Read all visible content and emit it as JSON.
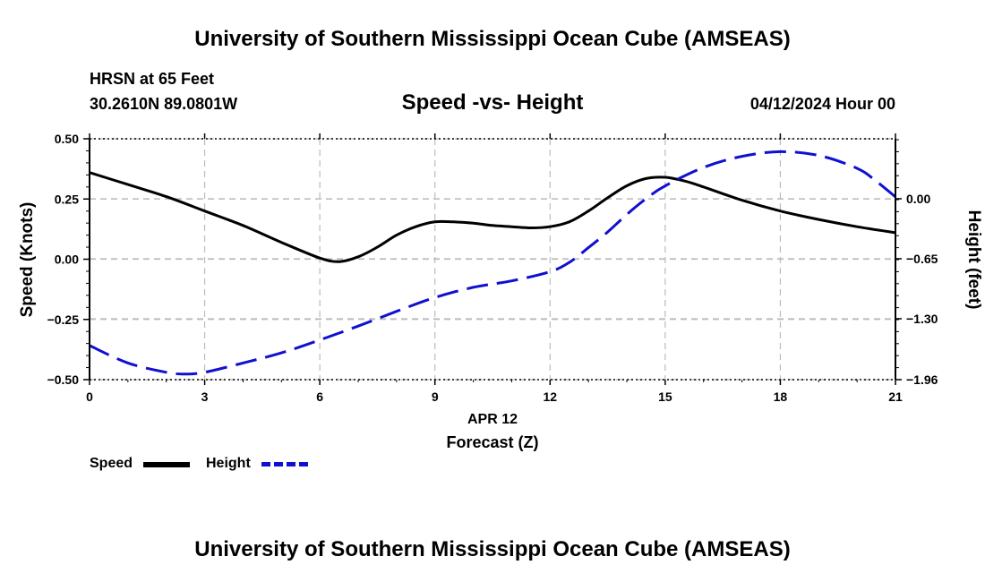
{
  "header": {
    "title": "University of Southern Mississippi Ocean Cube (AMSEAS)",
    "station": "HRSN at 65 Feet",
    "coords": "30.2610N  89.0801W",
    "chart_title": "Speed -vs- Height",
    "datetime": "04/12/2024 Hour 00"
  },
  "footer": {
    "title": "University of Southern Mississippi Ocean Cube (AMSEAS)"
  },
  "legend": {
    "speed_label": "Speed",
    "height_label": "Height"
  },
  "colors": {
    "speed": "#000000",
    "height": "#1010d0",
    "grid": "#bbbbbb"
  },
  "chart_data": {
    "type": "line",
    "title": "Speed -vs- Height",
    "xlabel": "Forecast (Z)",
    "xlabel_date": "APR 12",
    "ylabel": "Speed (Knots)",
    "y2label": "Height (feet)",
    "xlim": [
      0,
      21
    ],
    "ylim": [
      -0.5,
      0.5
    ],
    "y2lim": [
      -1.96,
      0.65
    ],
    "x_ticks": [
      0,
      3,
      6,
      9,
      12,
      15,
      18,
      21
    ],
    "x_tick_labels": [
      "0",
      "3",
      "6",
      "9",
      "12",
      "15",
      "18",
      "21"
    ],
    "y_ticks": [
      -0.5,
      -0.25,
      0,
      0.25,
      0.5
    ],
    "y_tick_labels": [
      "−0.50",
      "−0.25",
      "0.00",
      "0.25",
      "0.50"
    ],
    "y2_ticks": [
      -1.96,
      -1.3,
      -0.65,
      0
    ],
    "y2_tick_labels": [
      "−1.96",
      "−1.30",
      "−0.65",
      "0.00"
    ],
    "grid": true,
    "series": [
      {
        "name": "Speed",
        "axis": "left",
        "style": "solid",
        "x": [
          0,
          1,
          2,
          3,
          4,
          5,
          6,
          6.5,
          7,
          7.5,
          8,
          8.5,
          9,
          9.5,
          10,
          10.5,
          11,
          11.5,
          12,
          12.5,
          13,
          13.5,
          14,
          14.5,
          15,
          15.5,
          16,
          17,
          18,
          19,
          20,
          21
        ],
        "values": [
          0.36,
          0.31,
          0.26,
          0.2,
          0.14,
          0.07,
          0.005,
          -0.01,
          0.01,
          0.05,
          0.1,
          0.135,
          0.155,
          0.155,
          0.15,
          0.14,
          0.135,
          0.13,
          0.135,
          0.155,
          0.2,
          0.255,
          0.305,
          0.335,
          0.34,
          0.325,
          0.3,
          0.245,
          0.2,
          0.165,
          0.135,
          0.11
        ]
      },
      {
        "name": "Height",
        "axis": "right",
        "style": "dashed",
        "x": [
          0,
          1,
          2,
          2.5,
          3,
          4,
          5,
          6,
          7,
          8,
          9,
          10,
          11,
          12,
          12.5,
          13,
          13.5,
          14,
          14.5,
          15,
          16,
          17,
          18,
          19,
          20,
          20.5,
          21
        ],
        "values": [
          -1.59,
          -1.78,
          -1.88,
          -1.9,
          -1.88,
          -1.78,
          -1.67,
          -1.53,
          -1.38,
          -1.22,
          -1.07,
          -0.96,
          -0.89,
          -0.79,
          -0.69,
          -0.53,
          -0.36,
          -0.17,
          0.0,
          0.14,
          0.34,
          0.46,
          0.51,
          0.47,
          0.33,
          0.19,
          0.02
        ]
      }
    ]
  }
}
